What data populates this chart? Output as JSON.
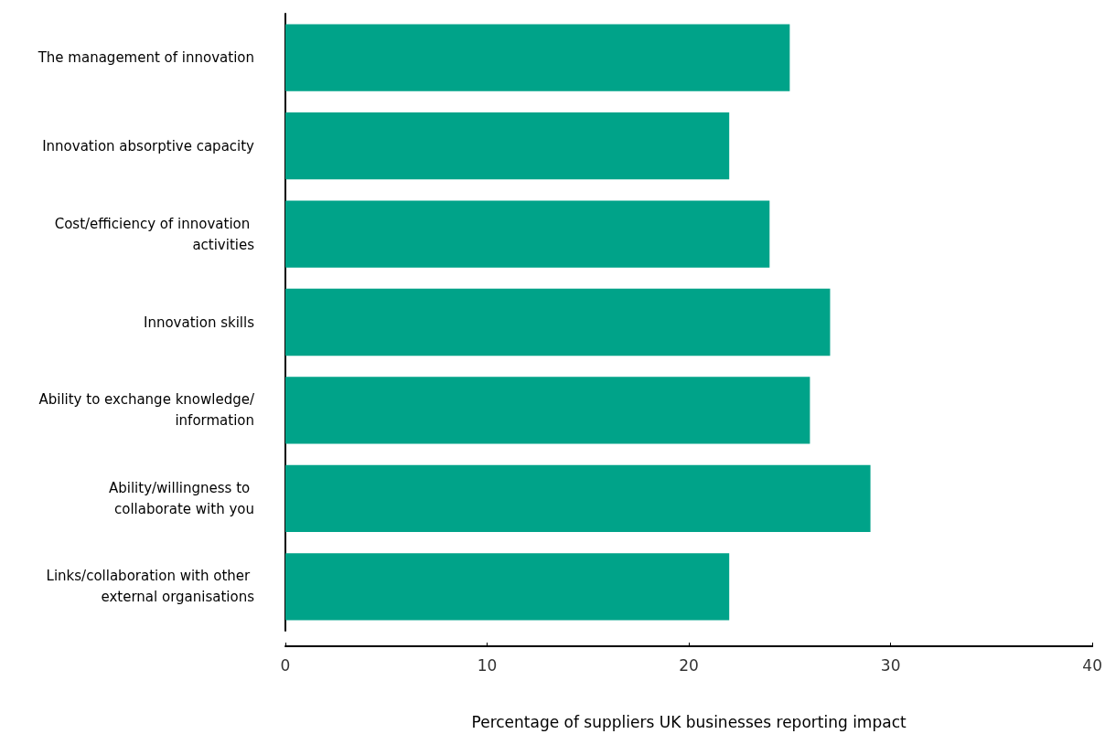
{
  "chart_data": {
    "type": "bar",
    "orientation": "horizontal",
    "xlabel": "Percentage of suppliers UK businesses reporting impact",
    "categories": [
      "The management of innovation",
      "Innovation absorptive capacity",
      "Cost/efficiency of innovation activities",
      "Innovation skills",
      "Ability to exchange knowledge/information",
      "Ability/willingness to collaborate with you",
      "Links/collaboration with other external organisations"
    ],
    "values": [
      25,
      22,
      24,
      27,
      26,
      29,
      22
    ],
    "color": "#00a389",
    "xlim": [
      0,
      40
    ],
    "xticks": [
      0,
      10,
      20,
      30,
      40
    ],
    "grid": false
  }
}
